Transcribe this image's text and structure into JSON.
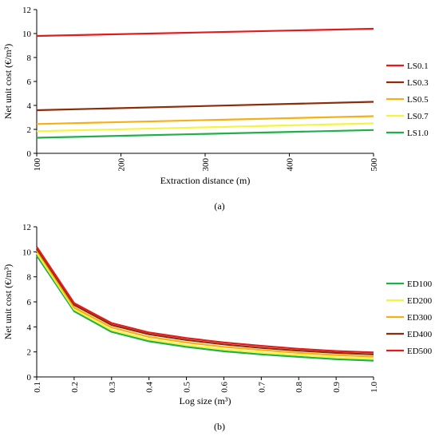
{
  "chart_data": [
    {
      "type": "line",
      "panel_label": "(a)",
      "xlabel": "Extraction distance (m)",
      "ylabel": "Net unit cost (€/m³)",
      "xlim": [
        100,
        500
      ],
      "ylim": [
        0,
        12
      ],
      "xticks": [
        "100",
        "200",
        "300",
        "400",
        "500"
      ],
      "yticks": [
        "0",
        "2",
        "4",
        "6",
        "8",
        "10",
        "12"
      ],
      "x": [
        100,
        500
      ],
      "legend_position": "right",
      "grid": false,
      "series": [
        {
          "name": "LS0.1",
          "color": "#e41a1c",
          "values": [
            9.8,
            10.4
          ]
        },
        {
          "name": "LS0.3",
          "color": "#8b2d0b",
          "values": [
            3.6,
            4.3
          ]
        },
        {
          "name": "LS0.5",
          "color": "#f5b014",
          "values": [
            2.45,
            3.1
          ]
        },
        {
          "name": "LS0.7",
          "color": "#f4f442",
          "values": [
            1.85,
            2.5
          ]
        },
        {
          "name": "LS1.0",
          "color": "#1fb04a",
          "values": [
            1.3,
            1.95
          ]
        }
      ]
    },
    {
      "type": "line",
      "panel_label": "(b)",
      "xlabel": "Log size (m³)",
      "ylabel": "Net unit cost (€/m³)",
      "xlim": [
        0.1,
        1.0
      ],
      "ylim": [
        0,
        12
      ],
      "xticks": [
        "0.1",
        "0.2",
        "0.3",
        "0.4",
        "0.5",
        "0.6",
        "0.7",
        "0.8",
        "0.9",
        "1.0"
      ],
      "yticks": [
        "0",
        "2",
        "4",
        "6",
        "8",
        "10",
        "12"
      ],
      "x": [
        0.1,
        0.2,
        0.3,
        0.4,
        0.5,
        0.6,
        0.7,
        0.8,
        0.9,
        1.0
      ],
      "legend_position": "right",
      "grid": false,
      "series": [
        {
          "name": "ED100",
          "color": "#1fb04a",
          "values": [
            9.7,
            5.25,
            3.6,
            2.85,
            2.4,
            2.05,
            1.8,
            1.6,
            1.42,
            1.3
          ]
        },
        {
          "name": "ED200",
          "color": "#f4f442",
          "values": [
            9.9,
            5.4,
            3.75,
            3.0,
            2.55,
            2.2,
            1.95,
            1.75,
            1.57,
            1.45
          ]
        },
        {
          "name": "ED300",
          "color": "#f5b014",
          "values": [
            10.1,
            5.55,
            3.95,
            3.2,
            2.75,
            2.4,
            2.15,
            1.92,
            1.75,
            1.62
          ]
        },
        {
          "name": "ED400",
          "color": "#8b2d0b",
          "values": [
            10.25,
            5.75,
            4.15,
            3.4,
            2.95,
            2.6,
            2.32,
            2.1,
            1.92,
            1.8
          ]
        },
        {
          "name": "ED500",
          "color": "#e41a1c",
          "values": [
            10.4,
            5.9,
            4.3,
            3.55,
            3.1,
            2.75,
            2.48,
            2.25,
            2.07,
            1.95
          ]
        }
      ]
    }
  ]
}
